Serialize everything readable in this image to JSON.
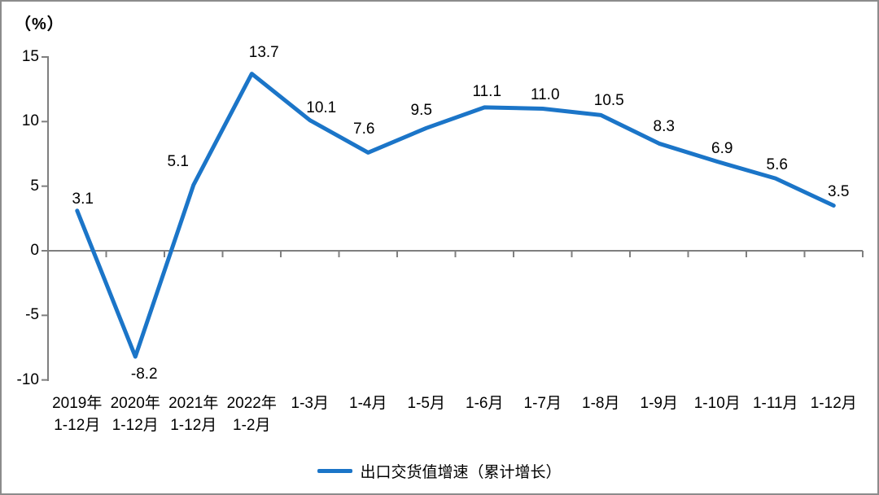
{
  "chart_data": {
    "type": "line",
    "title": "",
    "unit_label": "（%）",
    "categories": [
      "2019年\n1-12月",
      "2020年\n1-12月",
      "2021年\n1-12月",
      "2022年\n1-2月",
      "1-3月",
      "1-4月",
      "1-5月",
      "1-6月",
      "1-7月",
      "1-8月",
      "1-9月",
      "1-10月",
      "1-11月",
      "1-12月"
    ],
    "series": [
      {
        "name": "出口交货值增速（累计增长）",
        "values": [
          3.1,
          -8.2,
          5.1,
          13.7,
          10.1,
          7.6,
          9.5,
          11.1,
          11.0,
          10.5,
          8.3,
          6.9,
          5.6,
          3.5
        ],
        "value_labels": [
          "3.1",
          "-8.2",
          "5.1",
          "13.7",
          "10.1",
          "7.6",
          "9.5",
          "11.1",
          "11.0",
          "10.5",
          "8.3",
          "6.9",
          "5.6",
          "3.5"
        ]
      }
    ],
    "y_ticks": [
      15,
      10,
      5,
      0,
      -5,
      -10
    ],
    "y_tick_labels": [
      "15",
      "10",
      "5",
      "0",
      "-5",
      "-10"
    ],
    "ylim": [
      -10,
      15
    ],
    "grid": false,
    "legend_position": "bottom",
    "colors": {
      "line": "#1B75C8",
      "axis": "#7F7F7F",
      "text": "#000000",
      "border": "#8C8C8C"
    }
  }
}
